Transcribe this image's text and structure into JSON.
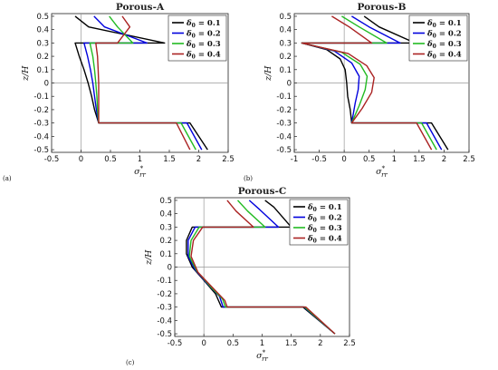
{
  "colors": {
    "delta_0.1": "#000000",
    "delta_0.2": "#0000dd",
    "delta_0.3": "#22bb22",
    "delta_0.4": "#aa2222",
    "zero_line": "#999999"
  },
  "chart_data": [
    {
      "type": "line",
      "panel_label": "(a)",
      "title": "Porous-A",
      "xlabel": "σ*rr",
      "ylabel": "z/H",
      "xlim": [
        -0.5,
        2.5
      ],
      "ylim": [
        -0.52,
        0.52
      ],
      "xticks": [
        "-0.5",
        "0",
        "0.5",
        "1",
        "1.5",
        "2",
        "2.5"
      ],
      "yticks": [
        "0.5",
        "0.4",
        "0.3",
        "0.2",
        "0.1",
        "0",
        "-0.1",
        "-0.2",
        "-0.3",
        "-0.4",
        "-0.5"
      ],
      "legend_position": "top-right",
      "series": [
        {
          "name": "δ0 = 0.1",
          "points": [
            [
              -0.1,
              0.5
            ],
            [
              0.13,
              0.42
            ],
            [
              1.42,
              0.3
            ],
            [
              -0.1,
              0.3
            ],
            [
              -0.03,
              0.2
            ],
            [
              0.05,
              0.1
            ],
            [
              0.12,
              0.0
            ],
            [
              0.18,
              -0.1
            ],
            [
              0.23,
              -0.2
            ],
            [
              0.3,
              -0.3
            ],
            [
              1.85,
              -0.3
            ],
            [
              2.15,
              -0.5
            ]
          ]
        },
        {
          "name": "δ0 = 0.2",
          "points": [
            [
              0.22,
              0.5
            ],
            [
              0.4,
              0.42
            ],
            [
              1.12,
              0.3
            ],
            [
              0.05,
              0.3
            ],
            [
              0.11,
              0.2
            ],
            [
              0.16,
              0.1
            ],
            [
              0.2,
              0.0
            ],
            [
              0.23,
              -0.1
            ],
            [
              0.26,
              -0.2
            ],
            [
              0.3,
              -0.3
            ],
            [
              1.8,
              -0.3
            ],
            [
              2.05,
              -0.5
            ]
          ]
        },
        {
          "name": "δ0 = 0.3",
          "points": [
            [
              0.48,
              0.5
            ],
            [
              0.62,
              0.42
            ],
            [
              0.88,
              0.3
            ],
            [
              0.15,
              0.3
            ],
            [
              0.2,
              0.2
            ],
            [
              0.23,
              0.1
            ],
            [
              0.25,
              0.0
            ],
            [
              0.27,
              -0.1
            ],
            [
              0.28,
              -0.2
            ],
            [
              0.3,
              -0.3
            ],
            [
              1.7,
              -0.3
            ],
            [
              1.95,
              -0.5
            ]
          ]
        },
        {
          "name": "δ0 = 0.4",
          "points": [
            [
              0.7,
              0.5
            ],
            [
              0.83,
              0.42
            ],
            [
              0.62,
              0.3
            ],
            [
              0.25,
              0.3
            ],
            [
              0.28,
              0.2
            ],
            [
              0.29,
              0.1
            ],
            [
              0.3,
              0.0
            ],
            [
              0.3,
              -0.1
            ],
            [
              0.3,
              -0.2
            ],
            [
              0.3,
              -0.3
            ],
            [
              1.62,
              -0.3
            ],
            [
              1.85,
              -0.5
            ]
          ]
        }
      ]
    },
    {
      "type": "line",
      "panel_label": "(b)",
      "title": "Porous-B",
      "xlabel": "σ*rr",
      "ylabel": "z/H",
      "xlim": [
        -1,
        2.5
      ],
      "ylim": [
        -0.52,
        0.52
      ],
      "xticks": [
        "-1",
        "-0.5",
        "0",
        "0.5",
        "1",
        "1.5",
        "2",
        "2.5"
      ],
      "yticks": [
        "0.5",
        "0.4",
        "0.3",
        "0.2",
        "0.1",
        "0",
        "-0.1",
        "-0.2",
        "-0.3",
        "-0.4",
        "-0.5"
      ],
      "legend_position": "top-right",
      "series": [
        {
          "name": "δ0 = 0.1",
          "points": [
            [
              0.4,
              0.5
            ],
            [
              0.7,
              0.42
            ],
            [
              1.42,
              0.3
            ],
            [
              -0.85,
              0.3
            ],
            [
              -0.35,
              0.25
            ],
            [
              -0.08,
              0.18
            ],
            [
              0.02,
              0.1
            ],
            [
              0.05,
              0.0
            ],
            [
              0.07,
              -0.1
            ],
            [
              0.12,
              -0.2
            ],
            [
              0.15,
              -0.3
            ],
            [
              1.75,
              -0.3
            ],
            [
              2.08,
              -0.5
            ]
          ]
        },
        {
          "name": "δ0 = 0.2",
          "points": [
            [
              0.15,
              0.5
            ],
            [
              0.5,
              0.42
            ],
            [
              1.12,
              0.3
            ],
            [
              -0.85,
              0.3
            ],
            [
              -0.2,
              0.24
            ],
            [
              0.15,
              0.15
            ],
            [
              0.3,
              0.05
            ],
            [
              0.28,
              -0.05
            ],
            [
              0.22,
              -0.15
            ],
            [
              0.15,
              -0.3
            ],
            [
              1.65,
              -0.3
            ],
            [
              1.95,
              -0.5
            ]
          ]
        },
        {
          "name": "δ0 = 0.3",
          "points": [
            [
              -0.05,
              0.5
            ],
            [
              0.3,
              0.42
            ],
            [
              0.85,
              0.3
            ],
            [
              -0.85,
              0.3
            ],
            [
              -0.05,
              0.23
            ],
            [
              0.32,
              0.14
            ],
            [
              0.46,
              0.05
            ],
            [
              0.42,
              -0.05
            ],
            [
              0.3,
              -0.17
            ],
            [
              0.15,
              -0.3
            ],
            [
              1.55,
              -0.3
            ],
            [
              1.85,
              -0.5
            ]
          ]
        },
        {
          "name": "δ0 = 0.4",
          "points": [
            [
              -0.25,
              0.5
            ],
            [
              0.1,
              0.42
            ],
            [
              0.55,
              0.3
            ],
            [
              -0.85,
              0.3
            ],
            [
              0.08,
              0.22
            ],
            [
              0.45,
              0.13
            ],
            [
              0.6,
              0.04
            ],
            [
              0.55,
              -0.07
            ],
            [
              0.36,
              -0.19
            ],
            [
              0.15,
              -0.3
            ],
            [
              1.45,
              -0.3
            ],
            [
              1.75,
              -0.5
            ]
          ]
        }
      ]
    },
    {
      "type": "line",
      "panel_label": "(c)",
      "title": "Porous-C",
      "xlabel": "σ*rr",
      "ylabel": "z/H",
      "xlim": [
        -0.5,
        2.5
      ],
      "ylim": [
        -0.52,
        0.52
      ],
      "xticks": [
        "-0.5",
        "0",
        "0.5",
        "1",
        "1.5",
        "2",
        "2.5"
      ],
      "yticks": [
        "0.5",
        "0.4",
        "0.3",
        "0.2",
        "0.1",
        "0",
        "-0.1",
        "-0.2",
        "-0.3",
        "-0.4",
        "-0.5"
      ],
      "legend_position": "top-right",
      "series": [
        {
          "name": "δ0 = 0.1",
          "points": [
            [
              1.05,
              0.5
            ],
            [
              1.2,
              0.45
            ],
            [
              1.5,
              0.3
            ],
            [
              -0.2,
              0.3
            ],
            [
              -0.3,
              0.2
            ],
            [
              -0.3,
              0.1
            ],
            [
              -0.2,
              0.0
            ],
            [
              0.0,
              -0.1
            ],
            [
              0.2,
              -0.2
            ],
            [
              0.3,
              -0.3
            ],
            [
              1.7,
              -0.3
            ],
            [
              2.25,
              -0.5
            ]
          ]
        },
        {
          "name": "δ0 = 0.2",
          "points": [
            [
              0.78,
              0.5
            ],
            [
              0.96,
              0.43
            ],
            [
              1.28,
              0.3
            ],
            [
              -0.15,
              0.3
            ],
            [
              -0.27,
              0.2
            ],
            [
              -0.27,
              0.08
            ],
            [
              -0.15,
              -0.02
            ],
            [
              0.05,
              -0.12
            ],
            [
              0.27,
              -0.22
            ],
            [
              0.33,
              -0.3
            ],
            [
              1.72,
              -0.3
            ],
            [
              2.25,
              -0.5
            ]
          ]
        },
        {
          "name": "δ0 = 0.3",
          "points": [
            [
              0.58,
              0.5
            ],
            [
              0.75,
              0.42
            ],
            [
              1.05,
              0.3
            ],
            [
              -0.08,
              0.3
            ],
            [
              -0.22,
              0.2
            ],
            [
              -0.25,
              0.08
            ],
            [
              -0.12,
              -0.03
            ],
            [
              0.1,
              -0.14
            ],
            [
              0.32,
              -0.24
            ],
            [
              0.37,
              -0.3
            ],
            [
              1.73,
              -0.3
            ],
            [
              2.25,
              -0.5
            ]
          ]
        },
        {
          "name": "δ0 = 0.4",
          "points": [
            [
              0.4,
              0.5
            ],
            [
              0.55,
              0.42
            ],
            [
              0.85,
              0.3
            ],
            [
              -0.02,
              0.3
            ],
            [
              -0.18,
              0.2
            ],
            [
              -0.22,
              0.08
            ],
            [
              -0.1,
              -0.04
            ],
            [
              0.14,
              -0.15
            ],
            [
              0.36,
              -0.25
            ],
            [
              0.4,
              -0.3
            ],
            [
              1.75,
              -0.3
            ],
            [
              2.25,
              -0.5
            ]
          ]
        }
      ]
    }
  ]
}
